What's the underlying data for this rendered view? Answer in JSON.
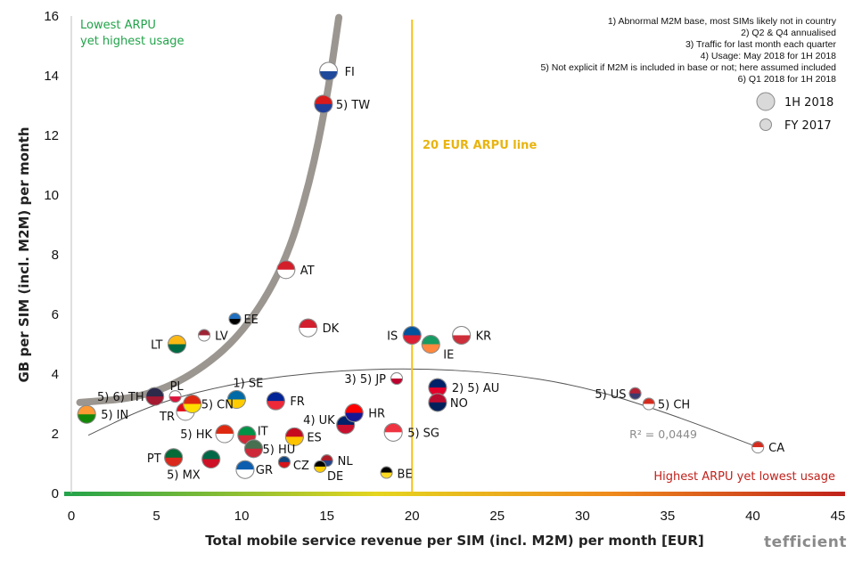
{
  "chart_data": {
    "type": "scatter",
    "title": "",
    "xlabel": "Total mobile service revenue per SIM (incl. M2M) per month [EUR]",
    "ylabel": "GB per SIM (incl. M2M) per month",
    "xlim": [
      0,
      45
    ],
    "ylim": [
      0,
      16
    ],
    "x_ticks": [
      "0",
      "5",
      "10",
      "15",
      "20",
      "25",
      "30",
      "35",
      "40",
      "45"
    ],
    "y_ticks": [
      "0",
      "2",
      "4",
      "6",
      "8",
      "10",
      "12",
      "14",
      "16"
    ],
    "grid": false,
    "points": [
      {
        "label": "FI",
        "x": 15.1,
        "y": 14.15,
        "colors": [
          "#ffffff",
          "#1f4a9c"
        ]
      },
      {
        "label": "5) TW",
        "x": 14.8,
        "y": 13.05,
        "colors": [
          "#d91a1a",
          "#1f3f9a"
        ]
      },
      {
        "label": "AT",
        "x": 12.6,
        "y": 7.5,
        "colors": [
          "#d21f2a",
          "#ffffff"
        ]
      },
      {
        "label": "EE",
        "x": 9.6,
        "y": 5.85,
        "colors": [
          "#1f6fc0",
          "#000000"
        ]
      },
      {
        "label": "DK",
        "x": 13.9,
        "y": 5.55,
        "colors": [
          "#d2202e",
          "#ffffff"
        ]
      },
      {
        "label": "LV",
        "x": 7.8,
        "y": 5.3,
        "colors": [
          "#9e2334",
          "#ffffff"
        ]
      },
      {
        "label": "LT",
        "x": 6.2,
        "y": 5.0,
        "colors": [
          "#fdb913",
          "#006a44"
        ]
      },
      {
        "label": "IS",
        "x": 20.0,
        "y": 5.3,
        "colors": [
          "#02529c",
          "#dc1e35"
        ]
      },
      {
        "label": "KR",
        "x": 22.9,
        "y": 5.3,
        "colors": [
          "#ffffff",
          "#cd2e3a"
        ]
      },
      {
        "label": "IE",
        "x": 21.1,
        "y": 5.0,
        "colors": [
          "#169b62",
          "#ff883e"
        ]
      },
      {
        "label": "1) SE",
        "x": 9.7,
        "y": 3.15,
        "colors": [
          "#006aa7",
          "#fecc00"
        ]
      },
      {
        "label": "FR",
        "x": 12.0,
        "y": 3.1,
        "colors": [
          "#002395",
          "#ed2939"
        ]
      },
      {
        "label": "3) 5) JP",
        "x": 19.1,
        "y": 3.85,
        "colors": [
          "#ffffff",
          "#bc002d"
        ]
      },
      {
        "label": "2) 5) AU",
        "x": 21.5,
        "y": 3.55,
        "colors": [
          "#012169",
          "#e4002b"
        ]
      },
      {
        "label": "NO",
        "x": 21.5,
        "y": 3.05,
        "colors": [
          "#ba0c2f",
          "#00205b"
        ]
      },
      {
        "label": "5) US",
        "x": 33.1,
        "y": 3.35,
        "colors": [
          "#b22234",
          "#3c3b6e"
        ]
      },
      {
        "label": "5) CH",
        "x": 33.9,
        "y": 3.0,
        "colors": [
          "#d52b1e",
          "#ffffff"
        ]
      },
      {
        "label": "CA",
        "x": 40.3,
        "y": 1.55,
        "colors": [
          "#d52b1e",
          "#ffffff"
        ]
      },
      {
        "label": "5) 6) TH",
        "x": 4.9,
        "y": 3.25,
        "colors": [
          "#2d2a4a",
          "#a51931"
        ]
      },
      {
        "label": "PL",
        "x": 6.1,
        "y": 3.25,
        "colors": [
          "#ffffff",
          "#dc143c"
        ]
      },
      {
        "label": "5) IN",
        "x": 0.9,
        "y": 2.65,
        "colors": [
          "#ff9933",
          "#138808"
        ]
      },
      {
        "label": "TR",
        "x": 6.7,
        "y": 2.75,
        "colors": [
          "#e30a17",
          "#ffffff"
        ]
      },
      {
        "label": "5) CN",
        "x": 7.1,
        "y": 3.0,
        "colors": [
          "#de2910",
          "#ffde00"
        ]
      },
      {
        "label": "4) UK",
        "x": 16.1,
        "y": 2.3,
        "colors": [
          "#012169",
          "#c8102e"
        ]
      },
      {
        "label": "HR",
        "x": 16.6,
        "y": 2.7,
        "colors": [
          "#ff0000",
          "#171796"
        ]
      },
      {
        "label": "5) SG",
        "x": 18.9,
        "y": 2.05,
        "colors": [
          "#ef3340",
          "#ffffff"
        ]
      },
      {
        "label": "5) HK",
        "x": 9.0,
        "y": 2.0,
        "colors": [
          "#de2910",
          "#ffffff"
        ]
      },
      {
        "label": "IT",
        "x": 10.3,
        "y": 1.95,
        "colors": [
          "#009246",
          "#ce2b37"
        ]
      },
      {
        "label": "ES",
        "x": 13.1,
        "y": 1.9,
        "colors": [
          "#c60b1e",
          "#ffc400"
        ]
      },
      {
        "label": "5) HU",
        "x": 10.7,
        "y": 1.5,
        "colors": [
          "#477050",
          "#ce2939"
        ]
      },
      {
        "label": "PT",
        "x": 6.0,
        "y": 1.2,
        "colors": [
          "#046a38",
          "#da291c"
        ]
      },
      {
        "label": "5) MX",
        "x": 8.2,
        "y": 1.15,
        "colors": [
          "#006847",
          "#ce1126"
        ]
      },
      {
        "label": "GR",
        "x": 10.2,
        "y": 0.8,
        "colors": [
          "#0d5eaf",
          "#ffffff"
        ]
      },
      {
        "label": "CZ",
        "x": 12.5,
        "y": 1.05,
        "colors": [
          "#11457e",
          "#d7141a"
        ]
      },
      {
        "label": "NL",
        "x": 15.0,
        "y": 1.1,
        "colors": [
          "#ae1c28",
          "#21468b"
        ]
      },
      {
        "label": "DE",
        "x": 14.6,
        "y": 0.9,
        "colors": [
          "#000000",
          "#ffce00"
        ]
      },
      {
        "label": "BE",
        "x": 18.5,
        "y": 0.7,
        "colors": [
          "#000000",
          "#fdda24"
        ]
      }
    ],
    "reference_line": {
      "x": 20,
      "label": "20 EUR ARPU line",
      "color": "#f5c21b"
    },
    "trendline": {
      "type": "polynomial",
      "r2_label": "R² = 0,0449",
      "color": "#555555"
    },
    "usage_curve_color": "#8a847d",
    "legend": {
      "position": "top-right",
      "items": [
        {
          "name": "1H 2018",
          "marker": "large-circle"
        },
        {
          "name": "FY 2017",
          "marker": "small-circle"
        }
      ]
    },
    "notes": [
      "1) Abnormal M2M base, most SIMs likely not in country",
      "2) Q2 & Q4 annualised",
      "3) Traffic for last month each quarter",
      "4) Usage: May 2018 for 1H 2018",
      "5) Not explicit if M2M is included in base or not; here assumed included",
      "6) Q1 2018 for 1H 2018"
    ],
    "annotations": {
      "top_left_line1": "Lowest ARPU",
      "top_left_line2": "yet highest usage",
      "bottom_right": "Highest ARPU yet lowest usage"
    },
    "gradient_colors": [
      "#22a34a",
      "#e5d51f",
      "#ef8a1c",
      "#c0211b"
    ]
  },
  "brand": "tefficient"
}
